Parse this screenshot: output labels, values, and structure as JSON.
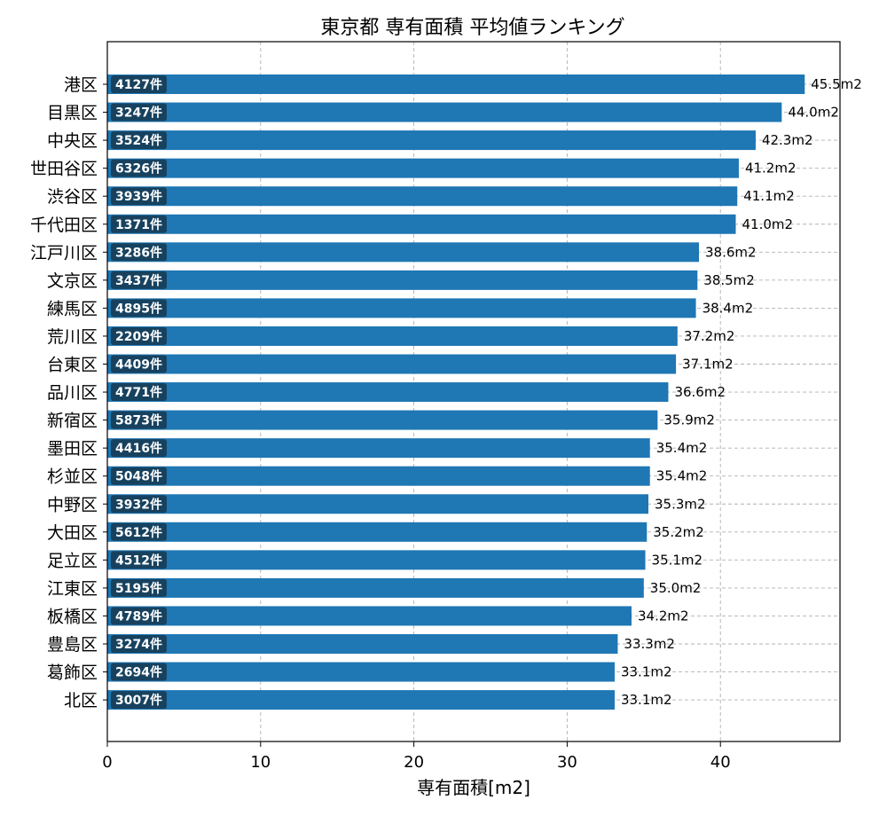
{
  "colors": {
    "bar": "#1f77b4",
    "count_badge": "#17425f",
    "grid": "#b0b0b0"
  },
  "chart_data": {
    "type": "bar",
    "orientation": "horizontal",
    "title": "東京都 専有面積 平均値ランキング",
    "xlabel": "専有面積[m2]",
    "ylabel": "",
    "xlim": [
      0,
      47.8
    ],
    "xticks": [
      0,
      10,
      20,
      30,
      40
    ],
    "grid": true,
    "value_suffix": "m2",
    "count_suffix": "件",
    "categories": [
      "港区",
      "目黒区",
      "中央区",
      "世田谷区",
      "渋谷区",
      "千代田区",
      "江戸川区",
      "文京区",
      "練馬区",
      "荒川区",
      "台東区",
      "品川区",
      "新宿区",
      "墨田区",
      "杉並区",
      "中野区",
      "大田区",
      "足立区",
      "江東区",
      "板橋区",
      "豊島区",
      "葛飾区",
      "北区"
    ],
    "values": [
      45.5,
      44.0,
      42.3,
      41.2,
      41.1,
      41.0,
      38.6,
      38.5,
      38.4,
      37.2,
      37.1,
      36.6,
      35.9,
      35.4,
      35.4,
      35.3,
      35.2,
      35.1,
      35.0,
      34.2,
      33.3,
      33.1,
      33.1
    ],
    "counts": [
      4127,
      3247,
      3524,
      6326,
      3939,
      1371,
      3286,
      3437,
      4895,
      2209,
      4409,
      4771,
      5873,
      4416,
      5048,
      3932,
      5612,
      4512,
      5195,
      4789,
      3274,
      2694,
      3007
    ]
  }
}
